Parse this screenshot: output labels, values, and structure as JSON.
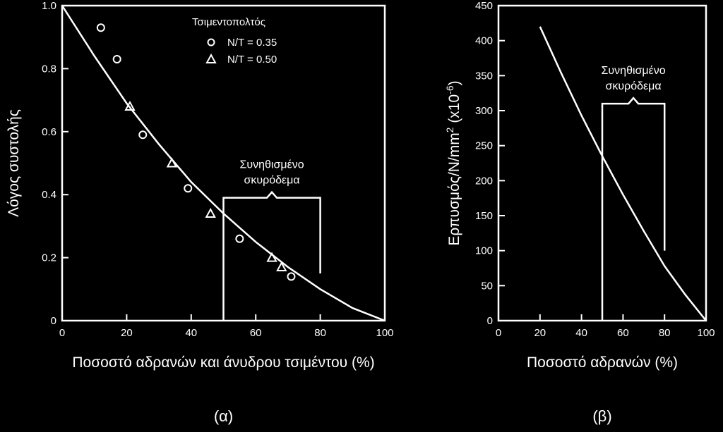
{
  "chart_data": [
    {
      "type": "scatter",
      "caption": "(α)",
      "xlabel": "Ποσοστό αδρανών και άνυδρου τσιμέντου (%)",
      "ylabel": "Λόγος συστολής",
      "xlim": [
        0,
        100
      ],
      "ylim": [
        0,
        1.0
      ],
      "xticks": [
        "0",
        "20",
        "40",
        "60",
        "80",
        "100"
      ],
      "yticks": [
        "0",
        "0.2",
        "0.4",
        "0.6",
        "0.8",
        "1.0"
      ],
      "grid": false,
      "legend": {
        "title": "Τσιμεντοπολτός",
        "position": "top-right",
        "entries": [
          {
            "marker": "circle",
            "label": "Ν/Τ = 0.35"
          },
          {
            "marker": "triangle",
            "label": "Ν/Τ = 0.50"
          }
        ]
      },
      "series": [
        {
          "name": "Ν/Τ = 0.35",
          "marker": "circle",
          "x": [
            12,
            17,
            25,
            39,
            55,
            71
          ],
          "y": [
            0.93,
            0.83,
            0.59,
            0.42,
            0.26,
            0.14
          ]
        },
        {
          "name": "Ν/Τ = 0.50",
          "marker": "triangle",
          "x": [
            21,
            34,
            46,
            65,
            68
          ],
          "y": [
            0.68,
            0.5,
            0.34,
            0.2,
            0.17
          ]
        }
      ],
      "curve": {
        "x": [
          0,
          10,
          20,
          30,
          40,
          50,
          60,
          70,
          80,
          90,
          100
        ],
        "y": [
          1.0,
          0.84,
          0.69,
          0.56,
          0.44,
          0.34,
          0.25,
          0.17,
          0.1,
          0.04,
          0.0
        ]
      },
      "annotation": {
        "lines": [
          "Συνηθισμένο",
          "σκυρόδεμα"
        ],
        "range": [
          50,
          80
        ],
        "top_y": 0.39,
        "bottom_y": 0.15
      }
    },
    {
      "type": "line",
      "caption": "(β)",
      "xlabel": "Ποσοστό αδρανών (%)",
      "ylabel": "Ερπυσμός/N/mm",
      "ylabel_sup": "2",
      "ylabel_suffix": " (x10",
      "ylabel_exp": "-6",
      "ylabel_close": ")",
      "xlim": [
        0,
        100
      ],
      "ylim": [
        0,
        450
      ],
      "xticks": [
        "0",
        "20",
        "40",
        "60",
        "80",
        "100"
      ],
      "yticks": [
        "0",
        "50",
        "100",
        "150",
        "200",
        "250",
        "300",
        "350",
        "400",
        "450"
      ],
      "grid": false,
      "curve": {
        "x": [
          20,
          30,
          40,
          50,
          60,
          70,
          80,
          90,
          100
        ],
        "y": [
          420,
          355,
          293,
          235,
          180,
          128,
          78,
          37,
          0
        ]
      },
      "annotation": {
        "lines": [
          "Συνηθισμένο",
          "σκυρόδεμα"
        ],
        "range": [
          50,
          80
        ],
        "top_y": 310,
        "bottom_y": 100
      }
    }
  ]
}
